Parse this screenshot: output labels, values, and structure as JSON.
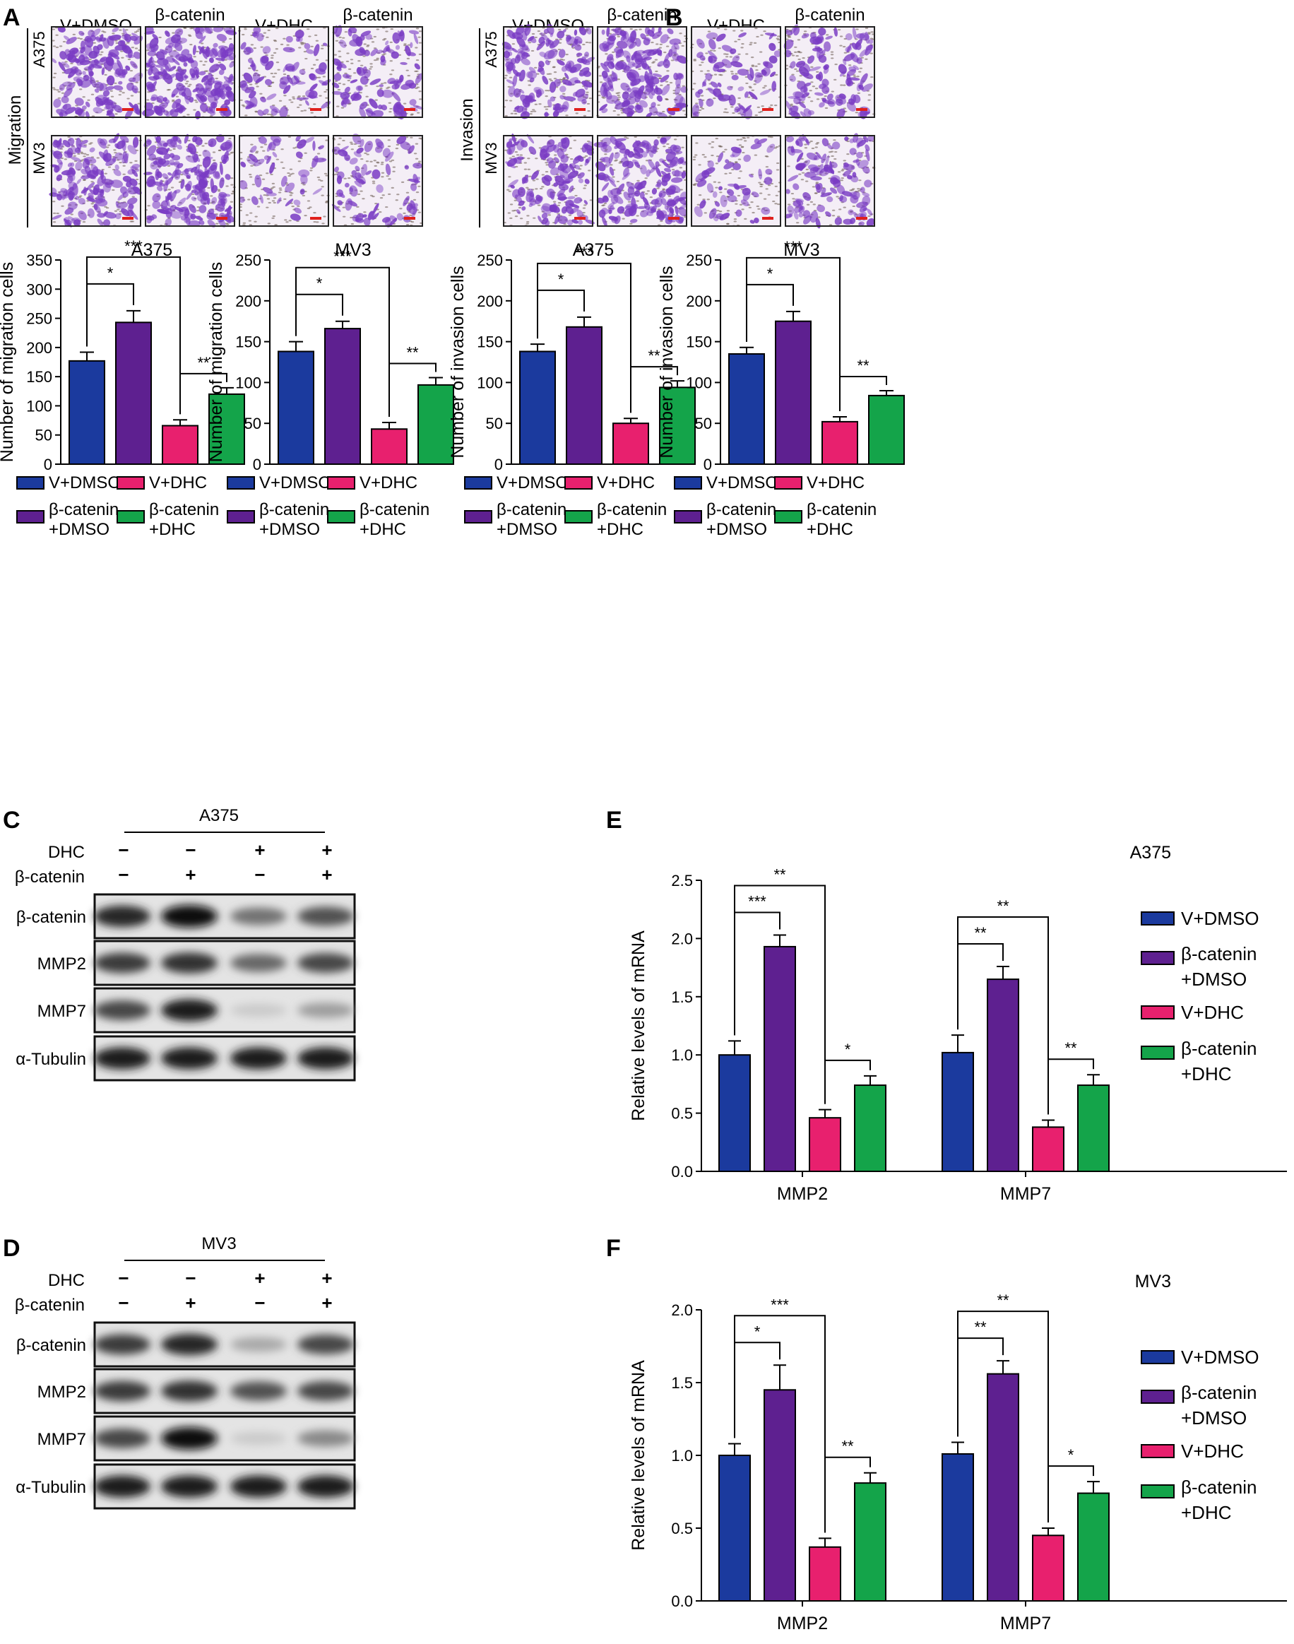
{
  "colors": {
    "v_dmso": "#1b3a9e",
    "bcat_dmso": "#5e2090",
    "v_dhc": "#e8206e",
    "bcat_dhc": "#14a44a",
    "stain": "#7a3cc4",
    "scale_bar": "#e0201c"
  },
  "panels": {
    "A": {
      "letter": "A",
      "assay": "Migration",
      "conditions": [
        "V+DMSO",
        "β-catenin\n+DMSO",
        "V+DHC",
        "β-catenin\n+DHC"
      ],
      "cell_lines": [
        "A375",
        "MV3"
      ],
      "stain_density": [
        [
          0.75,
          0.95,
          0.3,
          0.45
        ],
        [
          0.7,
          0.85,
          0.12,
          0.3
        ]
      ]
    },
    "B": {
      "letter": "B",
      "assay": "Invasion",
      "conditions": [
        "V+DMSO",
        "β-catenin\n+DMSO",
        "V+DHC",
        "β-catenin\n+DHC"
      ],
      "cell_lines": [
        "A375",
        "MV3"
      ],
      "stain_density": [
        [
          0.65,
          0.8,
          0.25,
          0.5
        ],
        [
          0.55,
          0.8,
          0.15,
          0.55
        ]
      ]
    },
    "C": {
      "letter": "C",
      "cell_line": "A375",
      "treatments": [
        {
          "name": "DHC",
          "signs": [
            "−",
            "−",
            "+",
            "+"
          ]
        },
        {
          "name": "β-catenin",
          "signs": [
            "−",
            "+",
            "−",
            "+"
          ]
        }
      ],
      "blots": [
        {
          "name": "β-catenin",
          "intensity": [
            0.9,
            1.0,
            0.55,
            0.7
          ]
        },
        {
          "name": "MMP2",
          "intensity": [
            0.8,
            0.85,
            0.6,
            0.75
          ]
        },
        {
          "name": "MMP7",
          "intensity": [
            0.75,
            0.95,
            0.15,
            0.35
          ]
        },
        {
          "name": "α-Tubulin",
          "intensity": [
            0.95,
            0.95,
            0.95,
            0.95
          ]
        }
      ]
    },
    "D": {
      "letter": "D",
      "cell_line": "MV3",
      "treatments": [
        {
          "name": "DHC",
          "signs": [
            "−",
            "−",
            "+",
            "+"
          ]
        },
        {
          "name": "β-catenin",
          "signs": [
            "−",
            "+",
            "−",
            "+"
          ]
        }
      ],
      "blots": [
        {
          "name": "β-catenin",
          "intensity": [
            0.8,
            0.9,
            0.3,
            0.75
          ]
        },
        {
          "name": "MMP2",
          "intensity": [
            0.8,
            0.85,
            0.7,
            0.75
          ]
        },
        {
          "name": "MMP7",
          "intensity": [
            0.75,
            1.0,
            0.15,
            0.45
          ]
        },
        {
          "name": "α-Tubulin",
          "intensity": [
            0.95,
            0.95,
            0.95,
            0.95
          ]
        }
      ]
    },
    "E": {
      "letter": "E"
    },
    "F": {
      "letter": "F"
    }
  },
  "legend_labels": [
    "V+DMSO",
    "β-catenin\n+DMSO",
    "V+DHC",
    "β-catenin\n+DHC"
  ],
  "chart_data": [
    {
      "type": "bar",
      "title": "A375",
      "ylabel": "Number of migration cells",
      "categories": [
        "V+DMSO",
        "β-catenin +DMSO",
        "V+DHC",
        "β-catenin +DHC"
      ],
      "values": [
        177,
        243,
        66,
        120
      ],
      "errors": [
        15,
        20,
        10,
        11
      ],
      "ylim": [
        0,
        350
      ],
      "yticks": [
        0,
        50,
        100,
        150,
        200,
        250,
        300,
        350
      ],
      "significance": [
        {
          "from": 0,
          "to": 1,
          "label": "*"
        },
        {
          "from": 0,
          "to": 2,
          "label": "***"
        },
        {
          "from": 2,
          "to": 3,
          "label": "**"
        }
      ]
    },
    {
      "type": "bar",
      "title": "MV3",
      "ylabel": "Number of migration cells",
      "categories": [
        "V+DMSO",
        "β-catenin +DMSO",
        "V+DHC",
        "β-catenin +DHC"
      ],
      "values": [
        138,
        166,
        43,
        97
      ],
      "errors": [
        12,
        9,
        8,
        9
      ],
      "ylim": [
        0,
        250
      ],
      "yticks": [
        0,
        50,
        100,
        150,
        200,
        250
      ],
      "significance": [
        {
          "from": 0,
          "to": 1,
          "label": "*"
        },
        {
          "from": 0,
          "to": 2,
          "label": "***"
        },
        {
          "from": 2,
          "to": 3,
          "label": "**"
        }
      ]
    },
    {
      "type": "bar",
      "title": "A375",
      "ylabel": "Number of invasion cells",
      "categories": [
        "V+DMSO",
        "β-catenin +DMSO",
        "V+DHC",
        "β-catenin +DHC"
      ],
      "values": [
        138,
        168,
        50,
        94
      ],
      "errors": [
        9,
        12,
        6,
        8
      ],
      "ylim": [
        0,
        250
      ],
      "yticks": [
        0,
        50,
        100,
        150,
        200,
        250
      ],
      "significance": [
        {
          "from": 0,
          "to": 1,
          "label": "*"
        },
        {
          "from": 0,
          "to": 2,
          "label": "***"
        },
        {
          "from": 2,
          "to": 3,
          "label": "**"
        }
      ]
    },
    {
      "type": "bar",
      "title": "MV3",
      "ylabel": "Number of invasion cells",
      "categories": [
        "V+DMSO",
        "β-catenin +DMSO",
        "V+DHC",
        "β-catenin +DHC"
      ],
      "values": [
        135,
        175,
        52,
        84
      ],
      "errors": [
        8,
        12,
        6,
        6
      ],
      "ylim": [
        0,
        250
      ],
      "yticks": [
        0,
        50,
        100,
        150,
        200,
        250
      ],
      "significance": [
        {
          "from": 0,
          "to": 1,
          "label": "*"
        },
        {
          "from": 0,
          "to": 2,
          "label": "***"
        },
        {
          "from": 2,
          "to": 3,
          "label": "**"
        }
      ]
    },
    {
      "type": "bar",
      "title": "A375",
      "ylabel": "Relative levels of mRNA",
      "categories": [
        "MMP2",
        "MMP7"
      ],
      "series": [
        {
          "name": "V+DMSO",
          "values": [
            1.0,
            1.02
          ],
          "errors": [
            0.12,
            0.15
          ]
        },
        {
          "name": "β-catenin +DMSO",
          "values": [
            1.93,
            1.65
          ],
          "errors": [
            0.1,
            0.11
          ]
        },
        {
          "name": "V+DHC",
          "values": [
            0.46,
            0.38
          ],
          "errors": [
            0.07,
            0.06
          ]
        },
        {
          "name": "β-catenin +DHC",
          "values": [
            0.74,
            0.74
          ],
          "errors": [
            0.08,
            0.09
          ]
        }
      ],
      "ylim": [
        0,
        2.5
      ],
      "yticks": [
        0.0,
        0.5,
        1.0,
        1.5,
        2.0,
        2.5
      ],
      "significance": [
        {
          "group": 0,
          "from": 0,
          "to": 1,
          "label": "***"
        },
        {
          "group": 0,
          "from": 0,
          "to": 2,
          "label": "**"
        },
        {
          "group": 0,
          "from": 2,
          "to": 3,
          "label": "*"
        },
        {
          "group": 1,
          "from": 0,
          "to": 1,
          "label": "**"
        },
        {
          "group": 1,
          "from": 0,
          "to": 2,
          "label": "**"
        },
        {
          "group": 1,
          "from": 2,
          "to": 3,
          "label": "**"
        }
      ]
    },
    {
      "type": "bar",
      "title": "MV3",
      "ylabel": "Relative levels of mRNA",
      "categories": [
        "MMP2",
        "MMP7"
      ],
      "series": [
        {
          "name": "V+DMSO",
          "values": [
            1.0,
            1.01
          ],
          "errors": [
            0.08,
            0.08
          ]
        },
        {
          "name": "β-catenin +DMSO",
          "values": [
            1.45,
            1.56
          ],
          "errors": [
            0.17,
            0.09
          ]
        },
        {
          "name": "V+DHC",
          "values": [
            0.37,
            0.45
          ],
          "errors": [
            0.06,
            0.05
          ]
        },
        {
          "name": "β-catenin +DHC",
          "values": [
            0.81,
            0.74
          ],
          "errors": [
            0.07,
            0.08
          ]
        }
      ],
      "ylim": [
        0,
        2.0
      ],
      "yticks": [
        0.0,
        0.5,
        1.0,
        1.5,
        2.0
      ],
      "significance": [
        {
          "group": 0,
          "from": 0,
          "to": 1,
          "label": "*"
        },
        {
          "group": 0,
          "from": 0,
          "to": 2,
          "label": "***"
        },
        {
          "group": 0,
          "from": 2,
          "to": 3,
          "label": "**"
        },
        {
          "group": 1,
          "from": 0,
          "to": 1,
          "label": "**"
        },
        {
          "group": 1,
          "from": 0,
          "to": 2,
          "label": "**"
        },
        {
          "group": 1,
          "from": 2,
          "to": 3,
          "label": "*"
        }
      ]
    }
  ]
}
